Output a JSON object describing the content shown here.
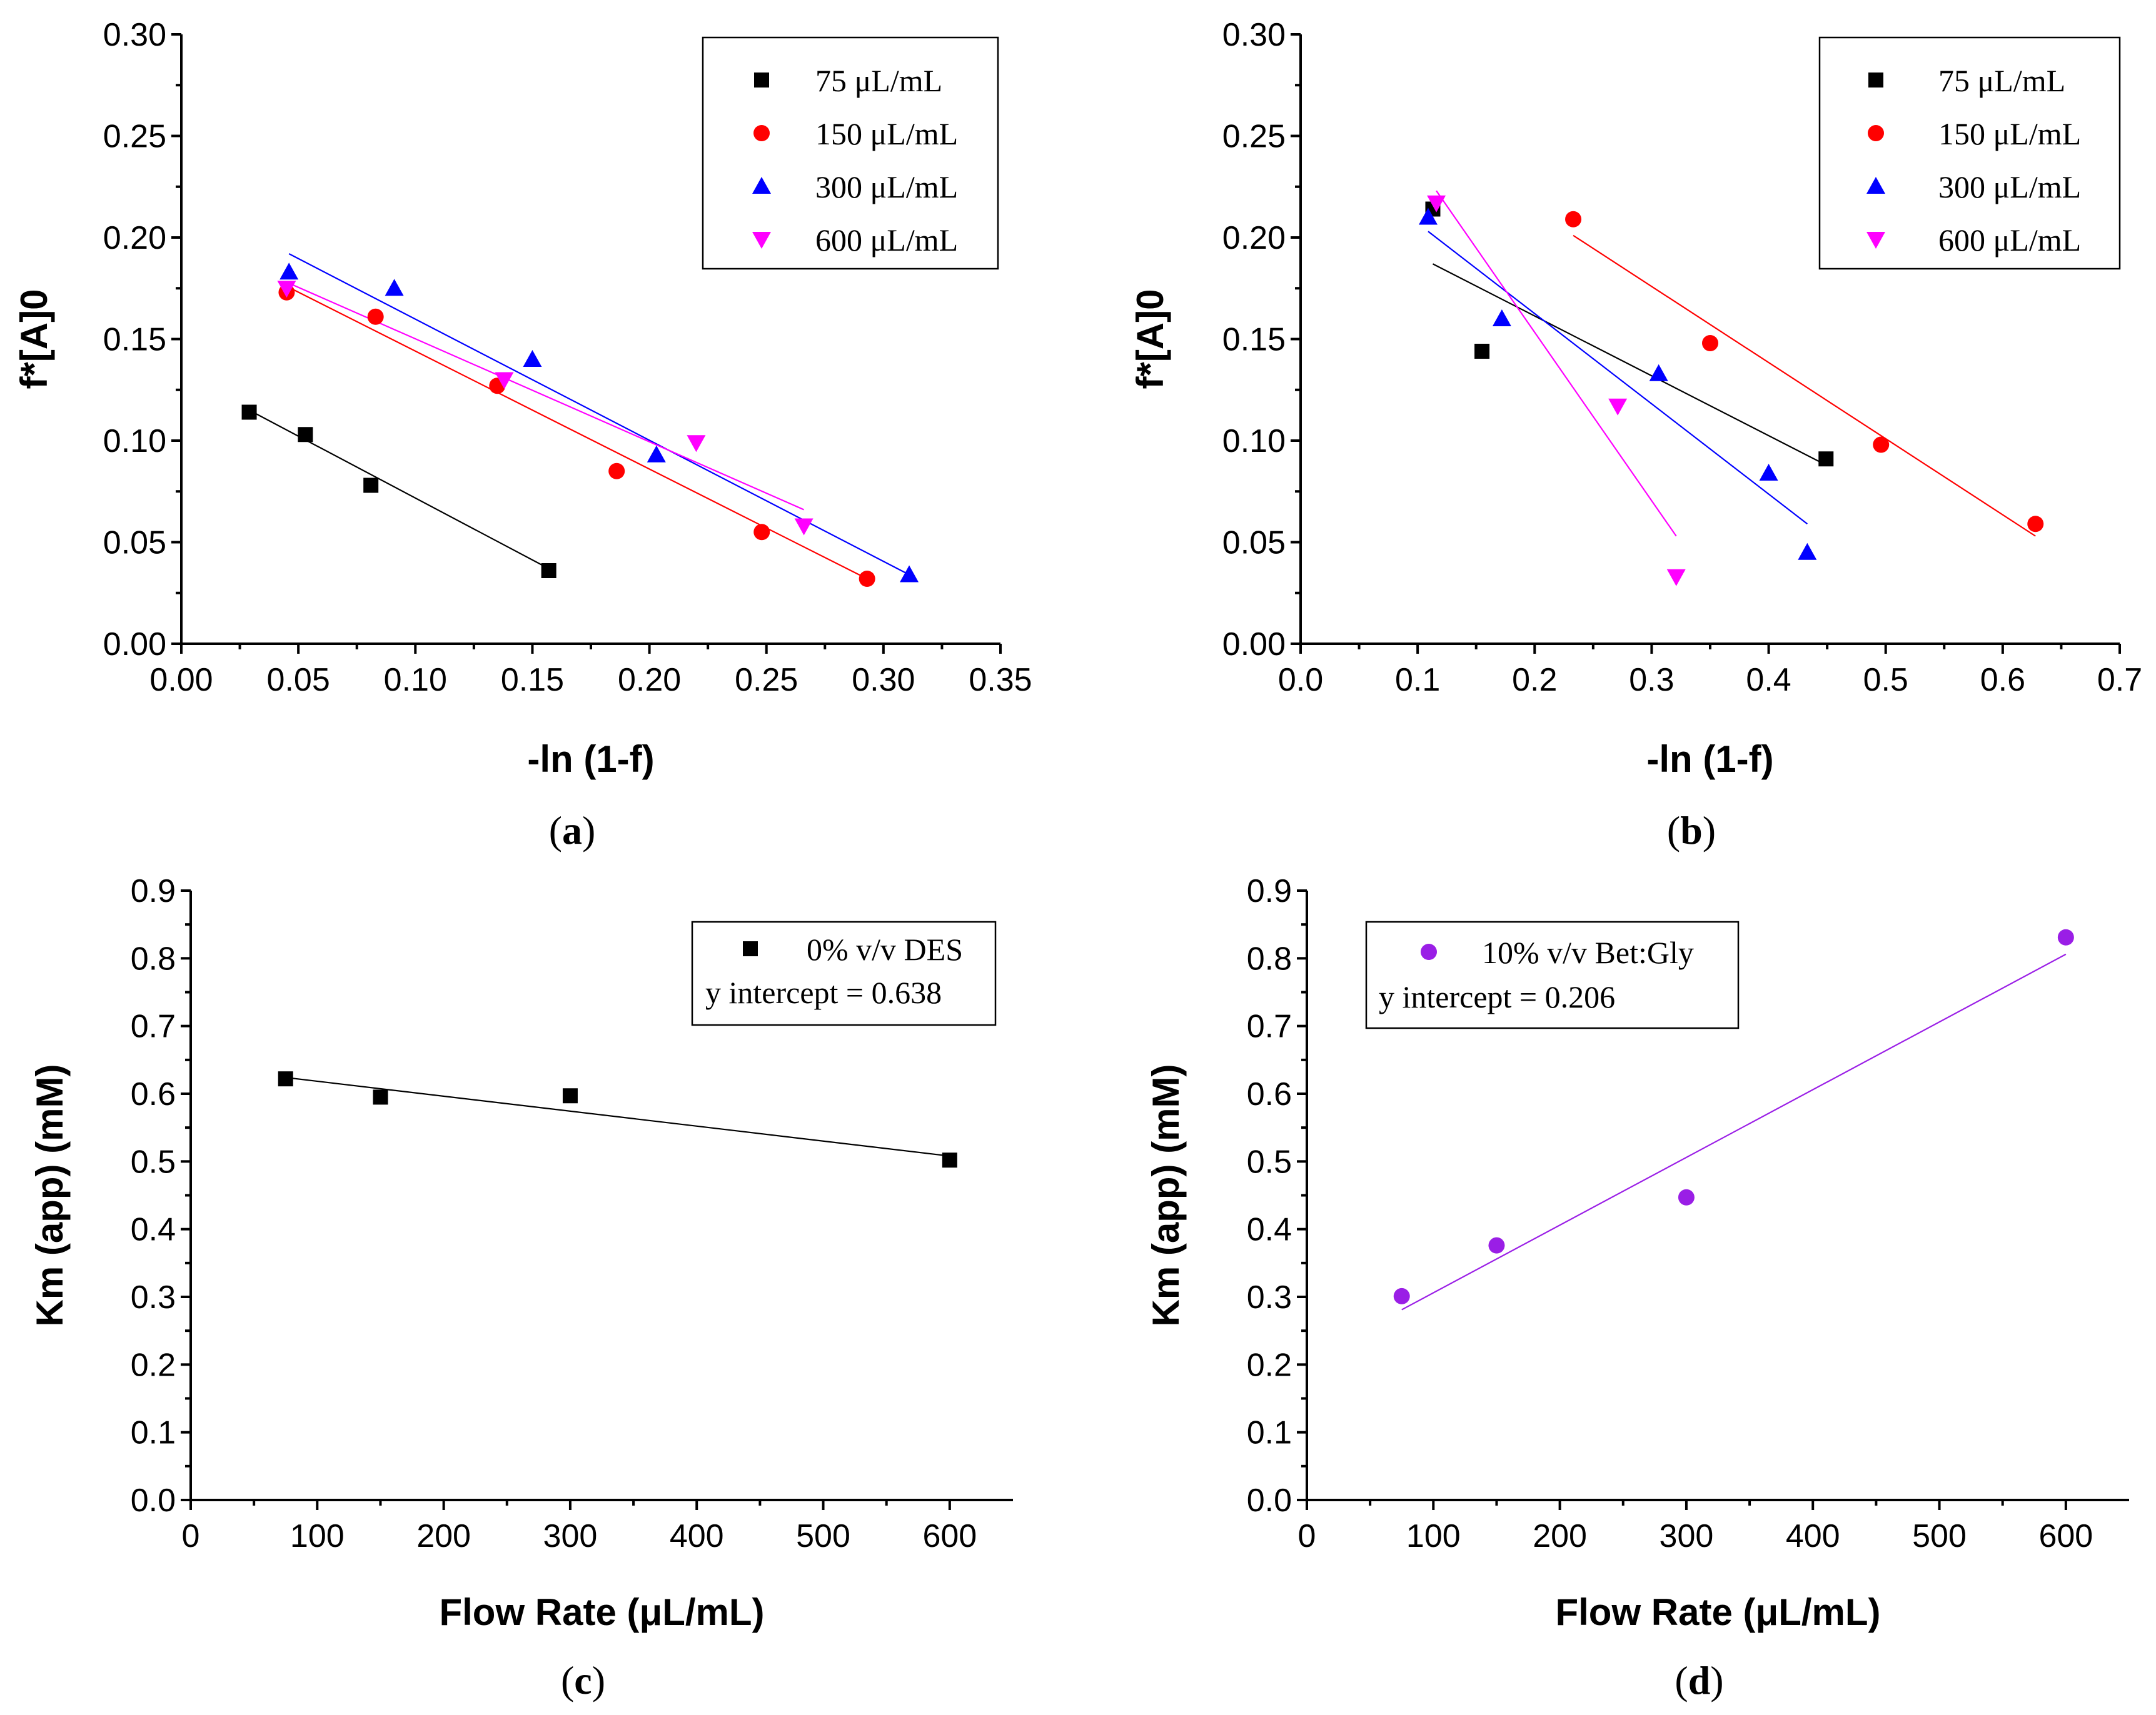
{
  "chart_data": [
    {
      "id": "a",
      "type": "scatter",
      "panel_label": "a",
      "xlabel": "-ln (1-f)",
      "ylabel": "f*[A]0",
      "xlim": [
        0,
        0.35
      ],
      "ylim": [
        0,
        0.3
      ],
      "xticks": [
        "0.00",
        "0.05",
        "0.10",
        "0.15",
        "0.20",
        "0.25",
        "0.30",
        "0.35"
      ],
      "yticks": [
        "0.00",
        "0.05",
        "0.10",
        "0.15",
        "0.20",
        "0.25",
        "0.30"
      ],
      "legend_position": "top-right",
      "series": [
        {
          "name": "75 μL/mL",
          "marker": "square",
          "color": "#000000",
          "x": [
            0.029,
            0.053,
            0.081,
            0.157
          ],
          "y": [
            0.114,
            0.103,
            0.078,
            0.036
          ],
          "fit": {
            "x": [
              0.029,
              0.157
            ],
            "y": [
              0.115,
              0.037
            ]
          }
        },
        {
          "name": "150 μL/mL",
          "marker": "circle",
          "color": "#ff0000",
          "x": [
            0.045,
            0.083,
            0.135,
            0.186,
            0.248,
            0.293
          ],
          "y": [
            0.173,
            0.161,
            0.127,
            0.085,
            0.055,
            0.032
          ],
          "fit": {
            "x": [
              0.045,
              0.293
            ],
            "y": [
              0.176,
              0.032
            ]
          }
        },
        {
          "name": "300 μL/mL",
          "marker": "triangle-up",
          "color": "#0000ff",
          "x": [
            0.046,
            0.091,
            0.15,
            0.203,
            0.311
          ],
          "y": [
            0.183,
            0.175,
            0.14,
            0.093,
            0.034
          ],
          "fit": {
            "x": [
              0.046,
              0.311
            ],
            "y": [
              0.192,
              0.034
            ]
          }
        },
        {
          "name": "600 μL/mL",
          "marker": "triangle-down",
          "color": "#ff00ff",
          "x": [
            0.045,
            0.138,
            0.22,
            0.266
          ],
          "y": [
            0.175,
            0.13,
            0.099,
            0.058
          ],
          "fit": {
            "x": [
              0.045,
              0.266
            ],
            "y": [
              0.178,
              0.066
            ]
          }
        }
      ]
    },
    {
      "id": "b",
      "type": "scatter",
      "panel_label": "b",
      "xlabel": "-ln (1-f)",
      "ylabel": "f*[A]0",
      "xlim": [
        0,
        0.7
      ],
      "ylim": [
        0,
        0.3
      ],
      "xticks": [
        "0.0",
        "0.1",
        "0.2",
        "0.3",
        "0.4",
        "0.5",
        "0.6",
        "0.7"
      ],
      "yticks": [
        "0.00",
        "0.05",
        "0.10",
        "0.15",
        "0.20",
        "0.25",
        "0.30"
      ],
      "legend_position": "top-right",
      "series": [
        {
          "name": "75 μL/mL",
          "marker": "square",
          "color": "#000000",
          "x": [
            0.113,
            0.155,
            0.449
          ],
          "y": [
            0.214,
            0.144,
            0.091
          ],
          "fit": {
            "x": [
              0.113,
              0.449
            ],
            "y": [
              0.187,
              0.088
            ]
          }
        },
        {
          "name": "150 μL/mL",
          "marker": "circle",
          "color": "#ff0000",
          "x": [
            0.233,
            0.35,
            0.496,
            0.628
          ],
          "y": [
            0.209,
            0.148,
            0.098,
            0.059
          ],
          "fit": {
            "x": [
              0.233,
              0.628
            ],
            "y": [
              0.201,
              0.053
            ]
          }
        },
        {
          "name": "300 μL/mL",
          "marker": "triangle-up",
          "color": "#0000ff",
          "x": [
            0.109,
            0.172,
            0.306,
            0.4,
            0.433
          ],
          "y": [
            0.21,
            0.16,
            0.133,
            0.084,
            0.045
          ],
          "fit": {
            "x": [
              0.109,
              0.433
            ],
            "y": [
              0.203,
              0.059
            ]
          }
        },
        {
          "name": "600 μL/mL",
          "marker": "triangle-down",
          "color": "#ff00ff",
          "x": [
            0.116,
            0.271,
            0.321
          ],
          "y": [
            0.217,
            0.117,
            0.033
          ],
          "fit": {
            "x": [
              0.116,
              0.321
            ],
            "y": [
              0.223,
              0.053
            ]
          }
        }
      ]
    },
    {
      "id": "c",
      "type": "scatter",
      "panel_label": "c",
      "xlabel": "Flow Rate (μL/mL)",
      "ylabel": "Km (app) (mM)",
      "xlim": [
        0,
        650
      ],
      "ylim": [
        0,
        0.9
      ],
      "xticks": [
        "0",
        "100",
        "200",
        "300",
        "400",
        "500",
        "600"
      ],
      "yticks": [
        "0.0",
        "0.1",
        "0.2",
        "0.3",
        "0.4",
        "0.5",
        "0.6",
        "0.7",
        "0.8",
        "0.9"
      ],
      "legend_position": "top-right",
      "legend_extra": "y intercept = 0.638",
      "series": [
        {
          "name": "0% v/v DES",
          "marker": "square",
          "color": "#000000",
          "x": [
            75,
            150,
            300,
            600
          ],
          "y": [
            0.622,
            0.595,
            0.597,
            0.502
          ],
          "fit": {
            "x": [
              75,
              600
            ],
            "y": [
              0.624,
              0.508
            ]
          }
        }
      ]
    },
    {
      "id": "d",
      "type": "scatter",
      "panel_label": "d",
      "xlabel": "Flow Rate (μL/mL)",
      "ylabel": "Km (app) (mM)",
      "xlim": [
        0,
        650
      ],
      "ylim": [
        0,
        0.9
      ],
      "xticks": [
        "0",
        "100",
        "200",
        "300",
        "400",
        "500",
        "600"
      ],
      "yticks": [
        "0.0",
        "0.1",
        "0.2",
        "0.3",
        "0.4",
        "0.5",
        "0.6",
        "0.7",
        "0.8",
        "0.9"
      ],
      "legend_position": "top-left",
      "legend_extra": "y intercept = 0.206",
      "series": [
        {
          "name": "10% v/v Bet:Gly",
          "marker": "circle",
          "color": "#9a1ee6",
          "x": [
            75,
            150,
            300,
            600
          ],
          "y": [
            0.301,
            0.376,
            0.447,
            0.831
          ],
          "fit": {
            "x": [
              75,
              600
            ],
            "y": [
              0.281,
              0.806
            ]
          }
        }
      ]
    }
  ]
}
